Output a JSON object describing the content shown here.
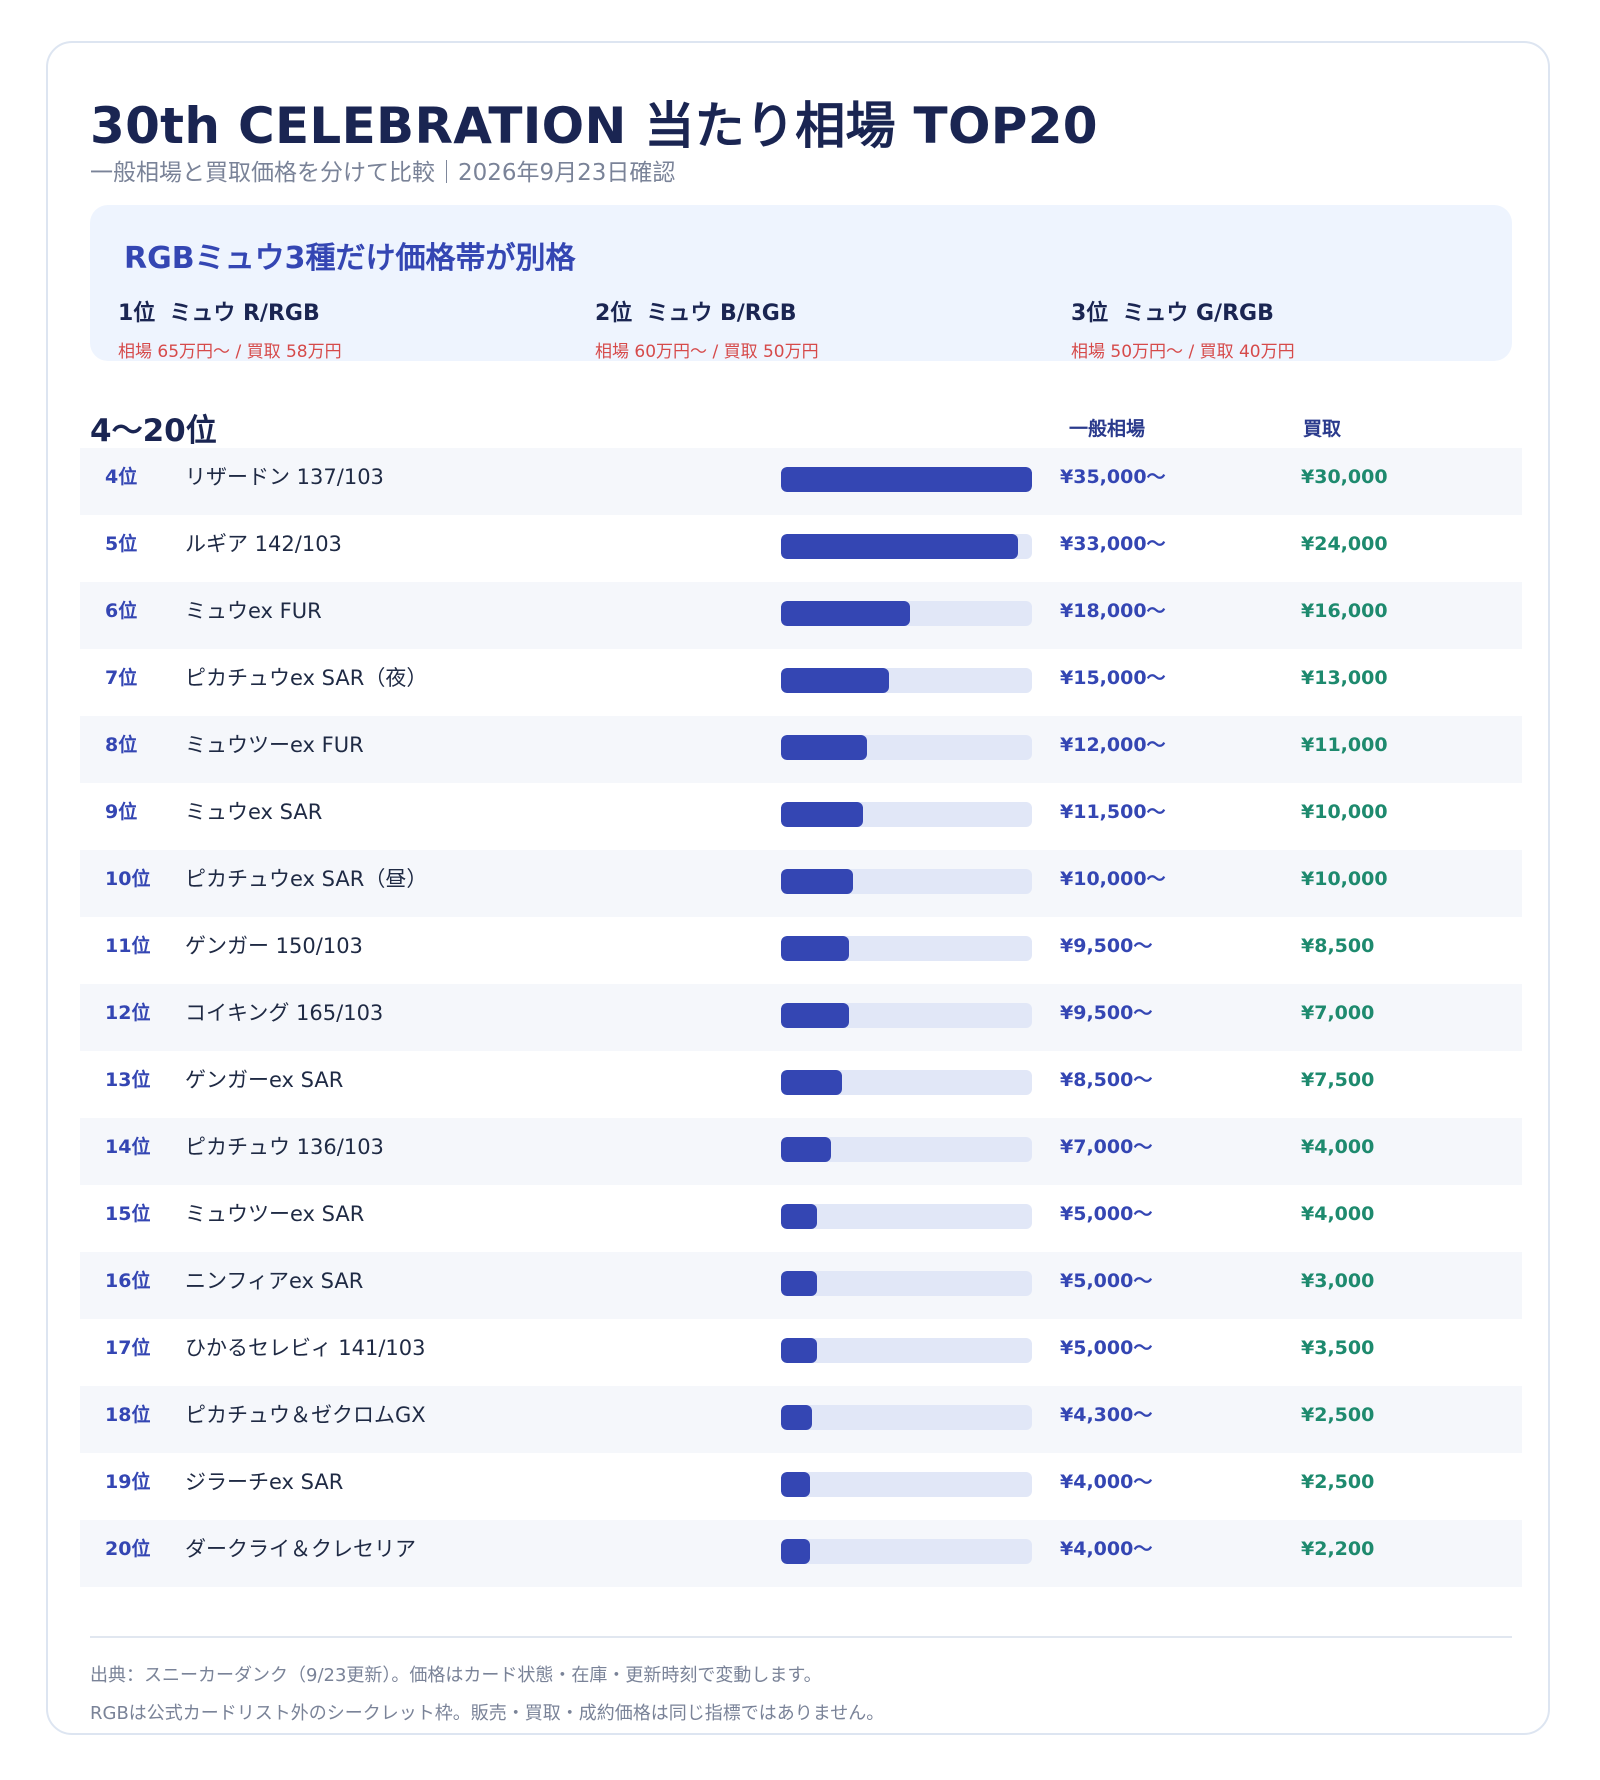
{
  "header": {
    "title": "30th CELEBRATION 当たり相場 TOP20",
    "subtitle": "一般相場と買取価格を分けて比較｜2026年9月23日確認"
  },
  "highlight": {
    "title": "RGBミュウ3種だけ価格帯が別格",
    "items": [
      {
        "rank": "1位",
        "name": "ミュウ R/RGB",
        "price": "相場 65万円〜 / 買取 58万円"
      },
      {
        "rank": "2位",
        "name": "ミュウ B/RGB",
        "price": "相場 60万円〜 / 買取 50万円"
      },
      {
        "rank": "3位",
        "name": "ミュウ G/RGB",
        "price": "相場 50万円〜 / 買取 40万円"
      }
    ]
  },
  "table": {
    "section_title": "4〜20位",
    "col_market": "一般相場",
    "col_buy": "買取"
  },
  "chart_data": {
    "type": "bar",
    "orientation": "horizontal",
    "bar_max": 35000,
    "rows": [
      {
        "rank": "4位",
        "name": "リザードン 137/103",
        "market": 35000,
        "market_label": "¥35,000〜",
        "buy_label": "¥30,000"
      },
      {
        "rank": "5位",
        "name": "ルギア 142/103",
        "market": 33000,
        "market_label": "¥33,000〜",
        "buy_label": "¥24,000"
      },
      {
        "rank": "6位",
        "name": "ミュウex FUR",
        "market": 18000,
        "market_label": "¥18,000〜",
        "buy_label": "¥16,000"
      },
      {
        "rank": "7位",
        "name": "ピカチュウex SAR（夜）",
        "market": 15000,
        "market_label": "¥15,000〜",
        "buy_label": "¥13,000"
      },
      {
        "rank": "8位",
        "name": "ミュウツーex FUR",
        "market": 12000,
        "market_label": "¥12,000〜",
        "buy_label": "¥11,000"
      },
      {
        "rank": "9位",
        "name": "ミュウex SAR",
        "market": 11500,
        "market_label": "¥11,500〜",
        "buy_label": "¥10,000"
      },
      {
        "rank": "10位",
        "name": "ピカチュウex SAR（昼）",
        "market": 10000,
        "market_label": "¥10,000〜",
        "buy_label": "¥10,000"
      },
      {
        "rank": "11位",
        "name": "ゲンガー 150/103",
        "market": 9500,
        "market_label": "¥9,500〜",
        "buy_label": "¥8,500"
      },
      {
        "rank": "12位",
        "name": "コイキング 165/103",
        "market": 9500,
        "market_label": "¥9,500〜",
        "buy_label": "¥7,000"
      },
      {
        "rank": "13位",
        "name": "ゲンガーex SAR",
        "market": 8500,
        "market_label": "¥8,500〜",
        "buy_label": "¥7,500"
      },
      {
        "rank": "14位",
        "name": "ピカチュウ 136/103",
        "market": 7000,
        "market_label": "¥7,000〜",
        "buy_label": "¥4,000"
      },
      {
        "rank": "15位",
        "name": "ミュウツーex SAR",
        "market": 5000,
        "market_label": "¥5,000〜",
        "buy_label": "¥4,000"
      },
      {
        "rank": "16位",
        "name": "ニンフィアex SAR",
        "market": 5000,
        "market_label": "¥5,000〜",
        "buy_label": "¥3,000"
      },
      {
        "rank": "17位",
        "name": "ひかるセレビィ 141/103",
        "market": 5000,
        "market_label": "¥5,000〜",
        "buy_label": "¥3,500"
      },
      {
        "rank": "18位",
        "name": "ピカチュウ＆ゼクロムGX",
        "market": 4300,
        "market_label": "¥4,300〜",
        "buy_label": "¥2,500"
      },
      {
        "rank": "19位",
        "name": "ジラーチex SAR",
        "market": 4000,
        "market_label": "¥4,000〜",
        "buy_label": "¥2,500"
      },
      {
        "rank": "20位",
        "name": "ダークライ＆クレセリア",
        "market": 4000,
        "market_label": "¥4,000〜",
        "buy_label": "¥2,200"
      }
    ]
  },
  "footer": {
    "line1": "出典：スニーカーダンク（9/23更新）。価格はカード状態・在庫・更新時刻で変動します。",
    "line2": "RGBは公式カードリスト外のシークレット枠。販売・買取・成約価格は同じ指標ではありません。"
  },
  "colors": {
    "accent": "#3446b3",
    "buy": "#1e8a6e",
    "highlight_price": "#d64a4a",
    "bar_track": "#e1e7f7"
  }
}
